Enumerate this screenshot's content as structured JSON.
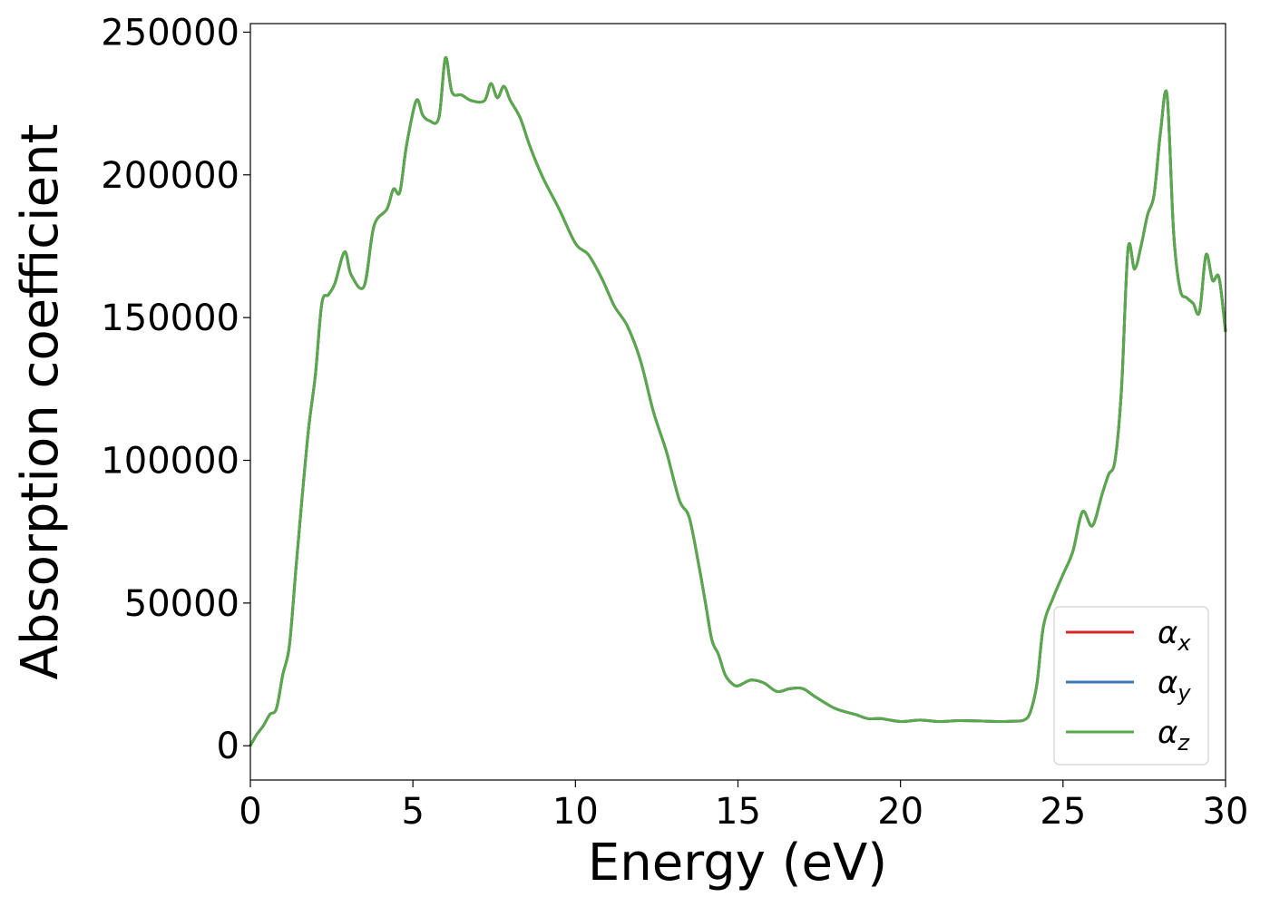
{
  "chart_data": {
    "type": "line",
    "title": "",
    "xlabel": "Energy (eV)",
    "ylabel": "Absorption coefficient",
    "xlim": [
      0,
      30
    ],
    "ylim": [
      -12000,
      253000
    ],
    "xticks": [
      0,
      5,
      10,
      15,
      20,
      25,
      30
    ],
    "yticks": [
      0,
      50000,
      100000,
      150000,
      200000,
      250000
    ],
    "xtick_labels": [
      "0",
      "5",
      "10",
      "15",
      "20",
      "25",
      "30"
    ],
    "ytick_labels": [
      "0",
      "50000",
      "100000",
      "150000",
      "200000",
      "250000"
    ],
    "grid": false,
    "legend_position": "lower-right",
    "x": [
      0,
      0.2,
      0.4,
      0.6,
      0.8,
      1.0,
      1.2,
      1.4,
      1.6,
      1.8,
      2.0,
      2.2,
      2.4,
      2.6,
      2.9,
      3.1,
      3.5,
      3.8,
      4.2,
      4.4,
      4.6,
      4.8,
      5.1,
      5.3,
      5.5,
      5.8,
      6.0,
      6.2,
      6.5,
      6.8,
      7.2,
      7.4,
      7.6,
      7.8,
      8.0,
      8.3,
      8.6,
      9.0,
      9.5,
      10.0,
      10.4,
      10.8,
      11.2,
      11.6,
      12.0,
      12.4,
      12.8,
      13.2,
      13.5,
      13.8,
      14.0,
      14.2,
      14.4,
      14.6,
      14.8,
      15.0,
      15.4,
      15.8,
      16.2,
      16.6,
      17.0,
      17.4,
      18.0,
      18.6,
      19.0,
      19.4,
      20.0,
      20.6,
      21.2,
      21.8,
      22.4,
      23.0,
      23.4,
      23.8,
      24.0,
      24.2,
      24.4,
      24.7,
      25.0,
      25.3,
      25.6,
      25.9,
      26.2,
      26.4,
      26.6,
      26.8,
      27.0,
      27.2,
      27.4,
      27.6,
      27.8,
      28.0,
      28.2,
      28.4,
      28.6,
      28.8,
      29.0,
      29.2,
      29.4,
      29.6,
      29.8,
      30.0
    ],
    "series": [
      {
        "name": "α_x",
        "color": "#d62728",
        "values": [
          0,
          4000,
          7000,
          11000,
          13000,
          25000,
          35000,
          62000,
          88000,
          112000,
          130000,
          155000,
          158000,
          162000,
          173000,
          165000,
          161000,
          182000,
          188000,
          195000,
          194000,
          210000,
          226000,
          221000,
          219000,
          220000,
          241000,
          229000,
          228000,
          226000,
          226000,
          232000,
          227000,
          231000,
          226000,
          220000,
          210000,
          199000,
          188000,
          176000,
          172000,
          164000,
          154000,
          147000,
          135000,
          117000,
          103000,
          86000,
          80000,
          63000,
          50000,
          37000,
          32000,
          25000,
          22000,
          21000,
          23000,
          22000,
          19000,
          20000,
          20000,
          17000,
          13000,
          11000,
          9500,
          9500,
          8500,
          9000,
          8500,
          8800,
          8700,
          8500,
          8600,
          9000,
          12000,
          22000,
          42000,
          52000,
          60000,
          68000,
          82000,
          77000,
          88000,
          95000,
          100000,
          125000,
          174000,
          167000,
          175000,
          186000,
          193000,
          215000,
          228000,
          180000,
          160000,
          157000,
          155000,
          152000,
          172000,
          163000,
          164000,
          145000
        ]
      },
      {
        "name": "α_y",
        "color": "#3a78b5",
        "values": [
          0,
          4000,
          7000,
          11000,
          13000,
          25000,
          35000,
          62000,
          88000,
          112000,
          130000,
          155000,
          158000,
          162000,
          173000,
          165000,
          161000,
          182000,
          188000,
          195000,
          194000,
          210000,
          226000,
          221000,
          219000,
          220000,
          241000,
          229000,
          228000,
          226000,
          226000,
          232000,
          227000,
          231000,
          226000,
          220000,
          210000,
          199000,
          188000,
          176000,
          172000,
          164000,
          154000,
          147000,
          135000,
          117000,
          103000,
          86000,
          80000,
          63000,
          50000,
          37000,
          32000,
          25000,
          22000,
          21000,
          23000,
          22000,
          19000,
          20000,
          20000,
          17000,
          13000,
          11000,
          9500,
          9500,
          8500,
          9000,
          8500,
          8800,
          8700,
          8500,
          8600,
          9000,
          12000,
          22000,
          42000,
          52000,
          60000,
          68000,
          82000,
          77000,
          88000,
          95000,
          100000,
          125000,
          174000,
          167000,
          175000,
          186000,
          193000,
          215000,
          228000,
          180000,
          160000,
          157000,
          155000,
          152000,
          172000,
          163000,
          164000,
          145000
        ]
      },
      {
        "name": "α_z",
        "color": "#59a84b",
        "values": [
          0,
          4000,
          7000,
          11000,
          13000,
          25000,
          35000,
          62000,
          88000,
          112000,
          130000,
          155000,
          158000,
          162000,
          173000,
          165000,
          161000,
          182000,
          188000,
          195000,
          194000,
          210000,
          226000,
          221000,
          219000,
          220000,
          241000,
          229000,
          228000,
          226000,
          226000,
          232000,
          227000,
          231000,
          226000,
          220000,
          210000,
          199000,
          188000,
          176000,
          172000,
          164000,
          154000,
          147000,
          135000,
          117000,
          103000,
          86000,
          80000,
          63000,
          50000,
          37000,
          32000,
          25000,
          22000,
          21000,
          23000,
          22000,
          19000,
          20000,
          20000,
          17000,
          13000,
          11000,
          9500,
          9500,
          8500,
          9000,
          8500,
          8800,
          8700,
          8500,
          8600,
          9000,
          12000,
          22000,
          42000,
          52000,
          60000,
          68000,
          82000,
          77000,
          88000,
          95000,
          100000,
          125000,
          174000,
          167000,
          175000,
          186000,
          193000,
          215000,
          228000,
          180000,
          160000,
          157000,
          155000,
          152000,
          172000,
          163000,
          164000,
          145000
        ]
      }
    ],
    "legend": [
      {
        "symbol": "α",
        "sub": "x",
        "color": "#d62728"
      },
      {
        "symbol": "α",
        "sub": "y",
        "color": "#3a78b5"
      },
      {
        "symbol": "α",
        "sub": "z",
        "color": "#59a84b"
      }
    ]
  }
}
